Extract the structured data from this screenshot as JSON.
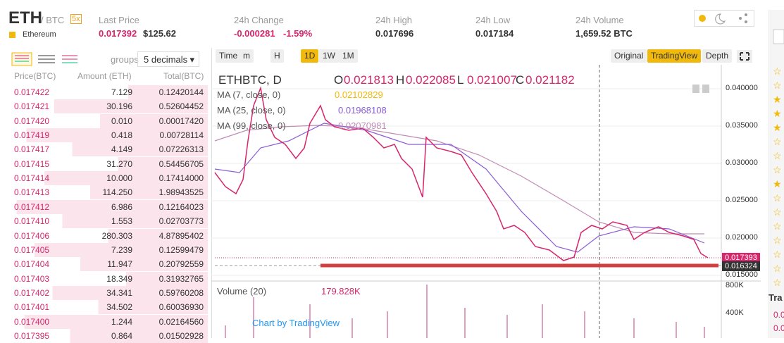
{
  "header": {
    "symbol": "ETH",
    "quote": "/ BTC",
    "leverage": "5x",
    "name": "Ethereum"
  },
  "stats": [
    {
      "label": "Last Price",
      "value": "0.017392",
      "extra": "$125.62"
    },
    {
      "label": "24h Change",
      "value": "-0.000281",
      "extra": "-1.59%"
    },
    {
      "label": "24h High",
      "value": "0.017696"
    },
    {
      "label": "24h Low",
      "value": "0.017184"
    },
    {
      "label": "24h Volume",
      "value": "1,659.52 BTC"
    }
  ],
  "order_book": {
    "groups_label": "groups",
    "groups_value": "5 decimals",
    "columns": [
      "Price(BTC)",
      "Amount (ETH)",
      "Total(BTC)"
    ],
    "rows": [
      [
        "0.017422",
        "7.129",
        "0.12420144"
      ],
      [
        "0.017421",
        "30.196",
        "0.52604452"
      ],
      [
        "0.017420",
        "0.010",
        "0.00017420"
      ],
      [
        "0.017419",
        "0.418",
        "0.00728114"
      ],
      [
        "0.017417",
        "4.149",
        "0.07226313"
      ],
      [
        "0.017415",
        "31.270",
        "0.54456705"
      ],
      [
        "0.017414",
        "10.000",
        "0.17414000"
      ],
      [
        "0.017413",
        "114.250",
        "1.98943525"
      ],
      [
        "0.017412",
        "6.986",
        "0.12164023"
      ],
      [
        "0.017410",
        "1.553",
        "0.02703773"
      ],
      [
        "0.017406",
        "280.303",
        "4.87895402"
      ],
      [
        "0.017405",
        "7.239",
        "0.12599479"
      ],
      [
        "0.017404",
        "11.947",
        "0.20792559"
      ],
      [
        "0.017403",
        "18.349",
        "0.31932765"
      ],
      [
        "0.017402",
        "34.341",
        "0.59760208"
      ],
      [
        "0.017401",
        "34.502",
        "0.60036930"
      ],
      [
        "0.017400",
        "1.244",
        "0.02164560"
      ],
      [
        "0.017395",
        "0.864",
        "0.01502928"
      ]
    ]
  },
  "chart": {
    "toolbar_left": [
      "Time",
      "m",
      "H",
      "1D",
      "1W",
      "1M"
    ],
    "toolbar_right": [
      "Original",
      "TradingView",
      "Depth"
    ],
    "symbol": "ETHBTC, D",
    "ohlc": [
      [
        "O",
        "0.021813"
      ],
      [
        "H",
        "0.022085"
      ],
      [
        "L",
        "0.021007"
      ],
      [
        "C",
        "0.021182"
      ]
    ],
    "ma": [
      {
        "label": "MA (7, close, 0)",
        "value": "0.02102829"
      },
      {
        "label": "MA (25, close, 0)",
        "value": "0.01968108"
      },
      {
        "label": "MA (99, close, 0)",
        "value": "0.02070981"
      }
    ],
    "price_ticks": [
      "0.040000",
      "0.035000",
      "0.030000",
      "0.025000",
      "0.020000",
      "0.015000"
    ],
    "last_label": "0.017393",
    "low_label": "0.016324",
    "volume_label": "Volume (20)",
    "volume_value": "179.828K",
    "volume_ticks": [
      "800K",
      "400K"
    ],
    "credit": "Chart by TradingView"
  },
  "right_panel": {
    "title": "Tra",
    "rows": [
      "0.0",
      "0.0"
    ]
  }
}
